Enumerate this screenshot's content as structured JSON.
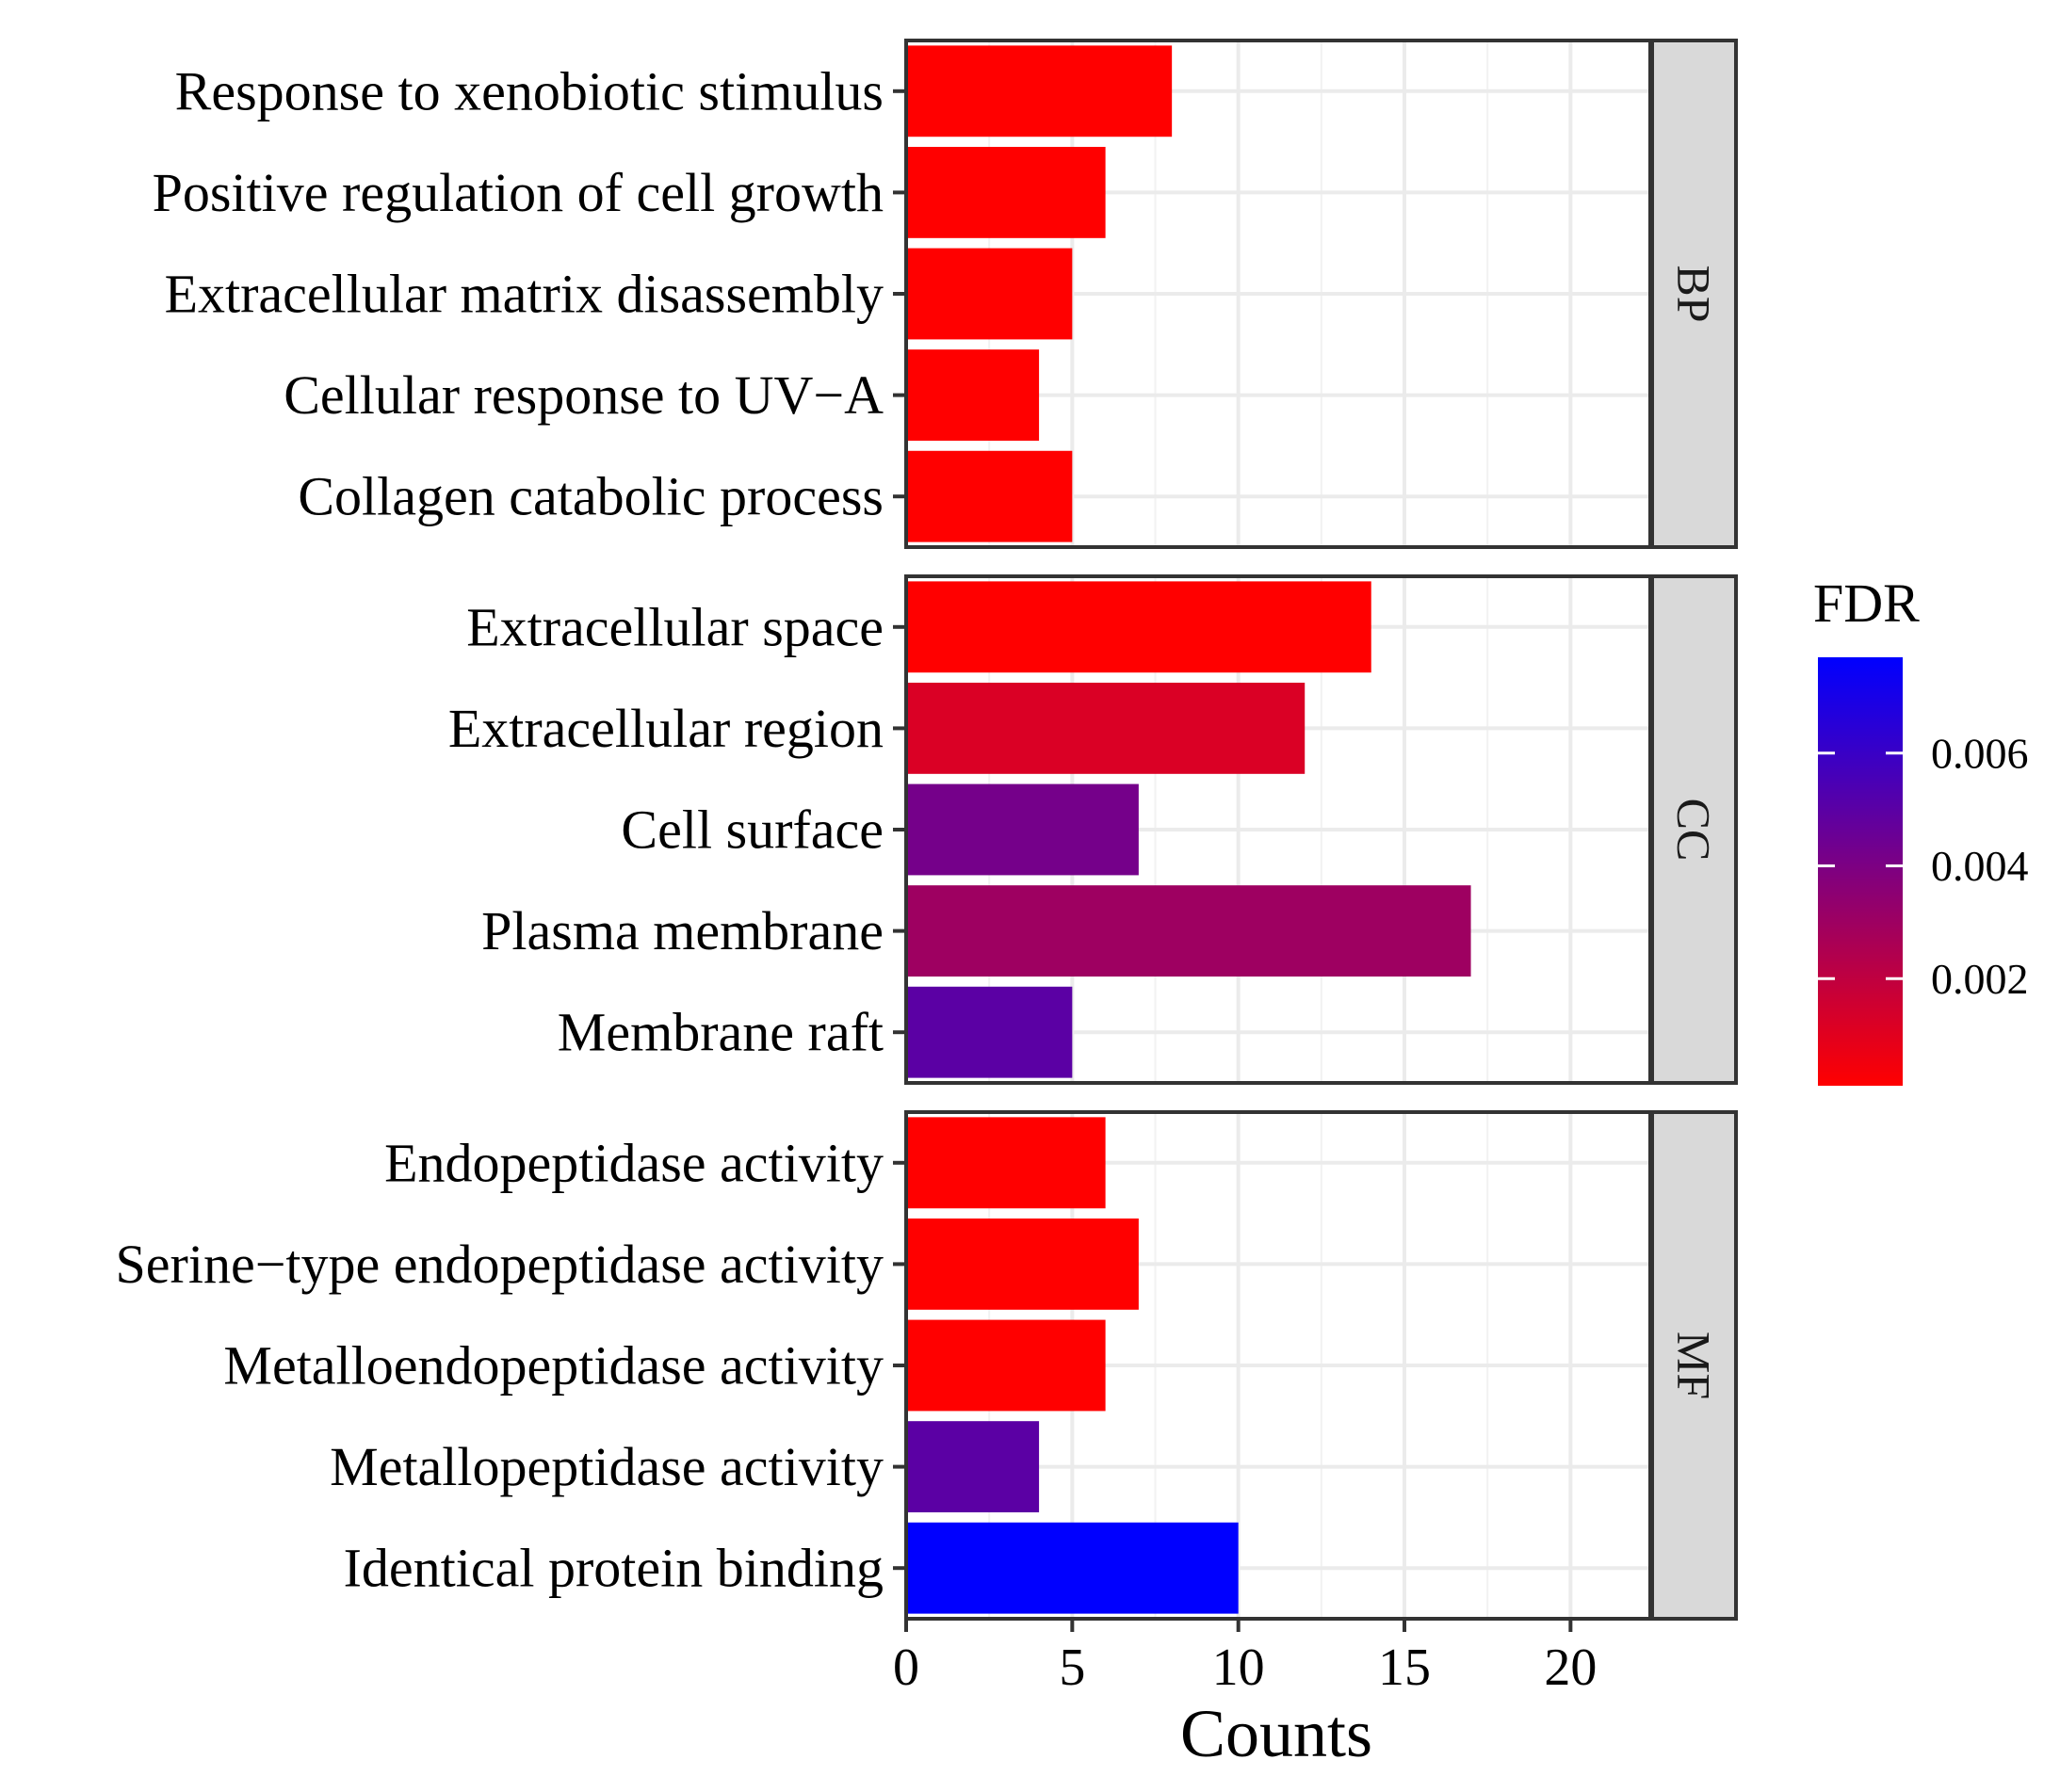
{
  "chart_data": {
    "type": "bar",
    "orientation": "horizontal",
    "xlabel": "Counts",
    "ylabel": "",
    "xlim": [
      0,
      22.4
    ],
    "xticks": [
      0,
      5,
      10,
      15,
      20
    ],
    "grid": true,
    "color_scale": {
      "title": "FDR",
      "low_color": "#ff0000",
      "high_color": "#0000ff",
      "range": [
        0.0001,
        0.0077
      ],
      "ticks": [
        0.002,
        0.004,
        0.006
      ],
      "tick_labels": [
        "0.002",
        "0.004",
        "0.006"
      ],
      "placement": "right"
    },
    "facets": [
      {
        "label": "BP",
        "categories": [
          "Response to xenobiotic stimulus",
          "Positive regulation of cell growth",
          "Extracellular matrix disassembly",
          "Cellular response to UV−A",
          "Collagen catabolic process"
        ],
        "values": [
          8,
          6,
          5,
          4,
          5
        ],
        "fdr": [
          0.0001,
          0.0001,
          0.0001,
          0.0001,
          0.0001
        ]
      },
      {
        "label": "CC",
        "categories": [
          "Extracellular space",
          "Extracellular region",
          "Cell surface",
          "Plasma membrane",
          "Membrane raft"
        ],
        "values": [
          14,
          12,
          7,
          17,
          5
        ],
        "fdr": [
          0.0001,
          0.0012,
          0.0042,
          0.003,
          0.005
        ]
      },
      {
        "label": "MF",
        "categories": [
          "Endopeptidase activity",
          "Serine−type endopeptidase activity",
          "Metalloendopeptidase activity",
          "Metallopeptidase activity",
          "Identical protein binding"
        ],
        "values": [
          6,
          7,
          6,
          4,
          10
        ],
        "fdr": [
          0.0001,
          0.0001,
          0.0001,
          0.005,
          0.0077
        ]
      }
    ]
  }
}
